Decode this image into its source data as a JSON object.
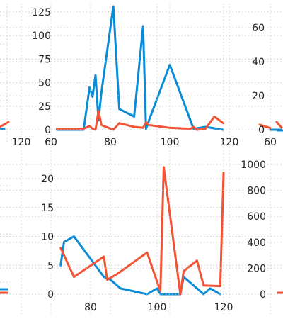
{
  "colors": {
    "blue": "#0a8bd6",
    "red": "#f25235",
    "grid": "#cccccc"
  },
  "chart_data": [
    {
      "id": "top-left",
      "type": "line",
      "xticks": [
        120
      ],
      "yticks": [],
      "series": [
        {
          "color": "blue",
          "x": [
            108,
            112,
            116
          ],
          "y": [
            0.3,
            0.3,
            0.0
          ]
        },
        {
          "color": "red",
          "x": [
            115,
            118
          ],
          "y": [
            0.8,
            0.6
          ]
        }
      ]
    },
    {
      "id": "top-middle",
      "type": "line",
      "xticks": [
        60,
        80,
        100,
        120
      ],
      "yticks": [
        0,
        25,
        50,
        75,
        100,
        125
      ],
      "xlim": [
        60,
        120
      ],
      "ylim": [
        -4,
        136
      ],
      "series": [
        {
          "color": "blue",
          "x": [
            62,
            71,
            73,
            74,
            75,
            76,
            77,
            81,
            83,
            88,
            91,
            92,
            93,
            100,
            108,
            112,
            118
          ],
          "y": [
            0,
            0,
            45,
            35,
            58,
            10,
            40,
            131,
            22,
            14,
            110,
            1,
            10,
            69,
            1,
            3,
            0
          ]
        },
        {
          "color": "red",
          "x": [
            62,
            71,
            73,
            74,
            75,
            76,
            77,
            81,
            83,
            88,
            91,
            92,
            93,
            100,
            107,
            108,
            109,
            112,
            115,
            118
          ],
          "y": [
            1,
            1,
            4,
            1,
            0,
            20,
            5,
            0,
            7,
            3,
            2,
            8,
            5,
            2,
            1,
            3,
            0,
            1,
            14,
            7
          ]
        }
      ]
    },
    {
      "id": "top-right",
      "type": "line",
      "xticks": [
        60
      ],
      "yticks": [
        0,
        20,
        40,
        60
      ],
      "series": [
        {
          "color": "blue",
          "x": [
            60,
            61
          ],
          "y": [
            0,
            0
          ]
        },
        {
          "color": "red",
          "x": [
            59,
            60
          ],
          "y": [
            3,
            1
          ]
        }
      ]
    },
    {
      "id": "bottom-left",
      "type": "line",
      "xticks": [],
      "yticks": [],
      "series": [
        {
          "color": "blue",
          "x": [
            0,
            1
          ],
          "y": [
            0.4,
            0.4
          ]
        },
        {
          "color": "red",
          "x": [
            0,
            1
          ],
          "y": [
            0.1,
            0.1
          ]
        }
      ]
    },
    {
      "id": "bottom-middle",
      "type": "line",
      "xticks": [
        80,
        100,
        120
      ],
      "yticks": [
        0,
        5,
        10,
        15,
        20
      ],
      "xlim": [
        70,
        121
      ],
      "ylim": [
        -0.7,
        23
      ],
      "series": [
        {
          "color": "blue",
          "x": [
            71,
            72,
            75,
            84,
            86,
            89,
            97,
            100,
            101,
            102,
            107,
            108,
            111,
            114,
            116,
            119
          ],
          "y": [
            5,
            9,
            10,
            3,
            2.5,
            1,
            0,
            1,
            0,
            0,
            0,
            3,
            1.5,
            0,
            1,
            0
          ]
        },
        {
          "color": "red",
          "x": [
            71,
            75,
            84,
            85,
            88,
            97,
            101,
            102,
            107,
            108,
            112,
            114,
            119,
            120
          ],
          "y": [
            8,
            3,
            6.5,
            2.5,
            3.5,
            7.2,
            0.5,
            22,
            0,
            4,
            5.8,
            1.5,
            1.4,
            21
          ]
        }
      ]
    },
    {
      "id": "bottom-right",
      "type": "line",
      "xticks": [],
      "yticks": [
        0,
        200,
        400,
        600,
        800,
        1000
      ],
      "series": [
        {
          "color": "red",
          "x": [
            0,
            1
          ],
          "y": [
            0,
            0
          ]
        }
      ]
    }
  ]
}
